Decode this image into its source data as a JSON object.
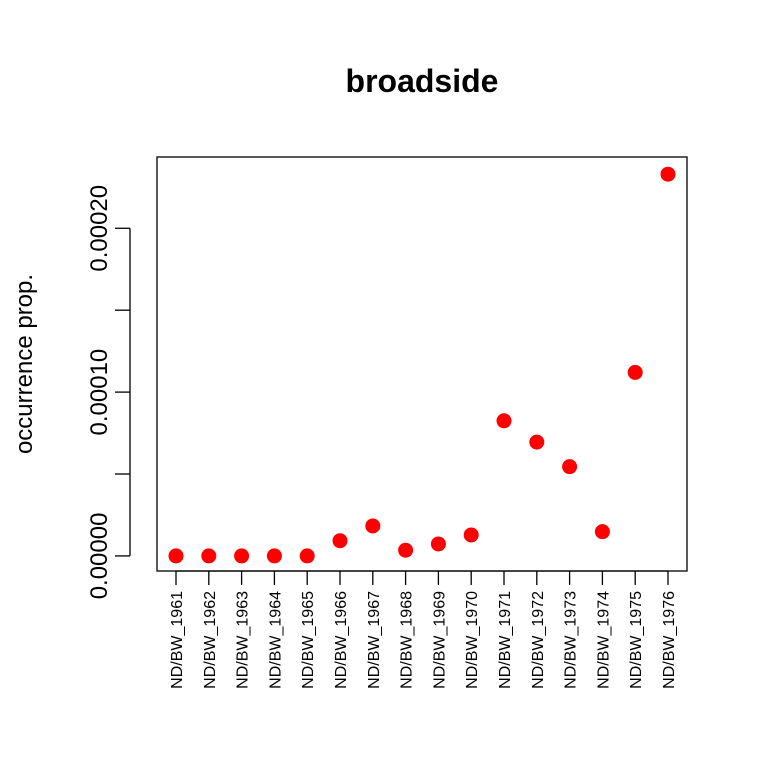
{
  "chart_data": {
    "type": "scatter",
    "title": "broadside",
    "xlabel": "",
    "ylabel": "occurrence prop.",
    "categories": [
      "ND/BW_1961",
      "ND/BW_1962",
      "ND/BW_1963",
      "ND/BW_1964",
      "ND/BW_1965",
      "ND/BW_1966",
      "ND/BW_1967",
      "ND/BW_1968",
      "ND/BW_1969",
      "ND/BW_1970",
      "ND/BW_1971",
      "ND/BW_1972",
      "ND/BW_1973",
      "ND/BW_1974",
      "ND/BW_1975",
      "ND/BW_1976"
    ],
    "values": [
      0.0,
      0.0,
      0.0,
      0.0,
      0.0,
      9.3e-06,
      1.83e-05,
      3.5e-06,
      7.3e-06,
      1.28e-05,
      8.25e-05,
      6.95e-05,
      5.45e-05,
      1.48e-05,
      0.000112,
      0.000233
    ],
    "ylim": [
      -9.2e-06,
      0.0002435
    ],
    "yticks": [
      0.0,
      5e-05,
      0.0001,
      0.00015,
      0.0002
    ],
    "ytick_labels": [
      "0.00000",
      "",
      "0.00010",
      "",
      "0.00020"
    ],
    "grid": false,
    "marker_color": "#ff0000"
  }
}
